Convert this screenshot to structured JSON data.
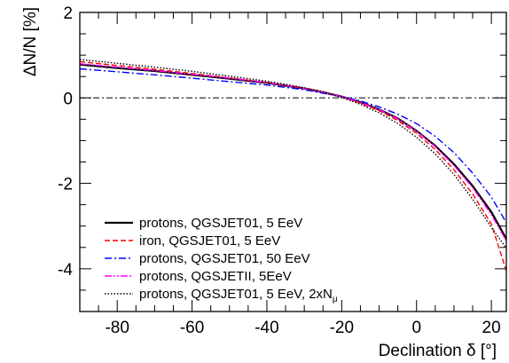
{
  "chart_data": {
    "type": "line",
    "xlabel": "Declination δ [°]",
    "ylabel": "ΔN/N [%]",
    "xlim": [
      -90,
      24
    ],
    "ylim": [
      -5,
      2
    ],
    "x_ticks": [
      -80,
      -60,
      -40,
      -20,
      0,
      20
    ],
    "y_ticks": [
      -4,
      -2,
      0,
      2
    ],
    "x_tick_labels": [
      "-80",
      "-60",
      "-40",
      "-20",
      "0",
      "20"
    ],
    "y_tick_labels": [
      "-4",
      "-2",
      "0",
      "2"
    ],
    "reference_line": {
      "y": 0,
      "style": "dash-dot"
    },
    "legend_position": "bottom-left",
    "series": [
      {
        "name": "protons, QGSJET01, 5 EeV",
        "color": "#000000",
        "style": "solid",
        "x": [
          -90,
          -80,
          -70,
          -60,
          -50,
          -40,
          -30,
          -25,
          -20,
          -15,
          -10,
          -5,
          0,
          5,
          10,
          15,
          20,
          24
        ],
        "y": [
          0.78,
          0.7,
          0.63,
          0.54,
          0.45,
          0.35,
          0.22,
          0.13,
          0.03,
          -0.1,
          -0.27,
          -0.48,
          -0.77,
          -1.12,
          -1.55,
          -2.06,
          -2.67,
          -3.3
        ]
      },
      {
        "name": "iron, QGSJET01, 5 EeV",
        "color": "#ff0000",
        "style": "dashed",
        "x": [
          -90,
          -80,
          -70,
          -60,
          -50,
          -40,
          -30,
          -25,
          -20,
          -15,
          -10,
          -5,
          0,
          5,
          10,
          15,
          20,
          24
        ],
        "y": [
          0.85,
          0.76,
          0.67,
          0.57,
          0.47,
          0.36,
          0.23,
          0.14,
          0.02,
          -0.12,
          -0.3,
          -0.53,
          -0.83,
          -1.21,
          -1.68,
          -2.25,
          -2.95,
          -4.05
        ]
      },
      {
        "name": "protons, QGSJET01, 50 EeV",
        "color": "#0000ff",
        "style": "dash-dot",
        "x": [
          -90,
          -80,
          -70,
          -60,
          -50,
          -40,
          -30,
          -25,
          -20,
          -15,
          -10,
          -5,
          0,
          5,
          10,
          15,
          20,
          24
        ],
        "y": [
          0.68,
          0.61,
          0.54,
          0.46,
          0.38,
          0.3,
          0.19,
          0.11,
          0.03,
          -0.07,
          -0.21,
          -0.38,
          -0.6,
          -0.9,
          -1.28,
          -1.76,
          -2.32,
          -2.92
        ]
      },
      {
        "name": "protons, QGSJETII, 5EeV",
        "color": "#ff00ff",
        "style": "dash-dot-dot",
        "x": [
          -90,
          -80,
          -70,
          -60,
          -50,
          -40,
          -30,
          -25,
          -20,
          -15,
          -10,
          -5,
          0,
          5,
          10,
          15,
          20,
          24
        ],
        "y": [
          0.8,
          0.72,
          0.64,
          0.55,
          0.46,
          0.36,
          0.22,
          0.13,
          0.03,
          -0.1,
          -0.27,
          -0.49,
          -0.78,
          -1.14,
          -1.58,
          -2.1,
          -2.73,
          -3.35
        ]
      },
      {
        "name": "protons, QGSJET01, 5 EeV, 2xN",
        "name_subscript": "μ",
        "color": "#000000",
        "style": "dotted",
        "x": [
          -90,
          -80,
          -70,
          -60,
          -50,
          -40,
          -30,
          -25,
          -20,
          -15,
          -10,
          -5,
          0,
          5,
          10,
          15,
          20,
          24
        ],
        "y": [
          0.9,
          0.81,
          0.72,
          0.62,
          0.51,
          0.39,
          0.24,
          0.14,
          0.01,
          -0.15,
          -0.35,
          -0.6,
          -0.92,
          -1.31,
          -1.79,
          -2.37,
          -3.03,
          -3.52
        ]
      }
    ]
  }
}
